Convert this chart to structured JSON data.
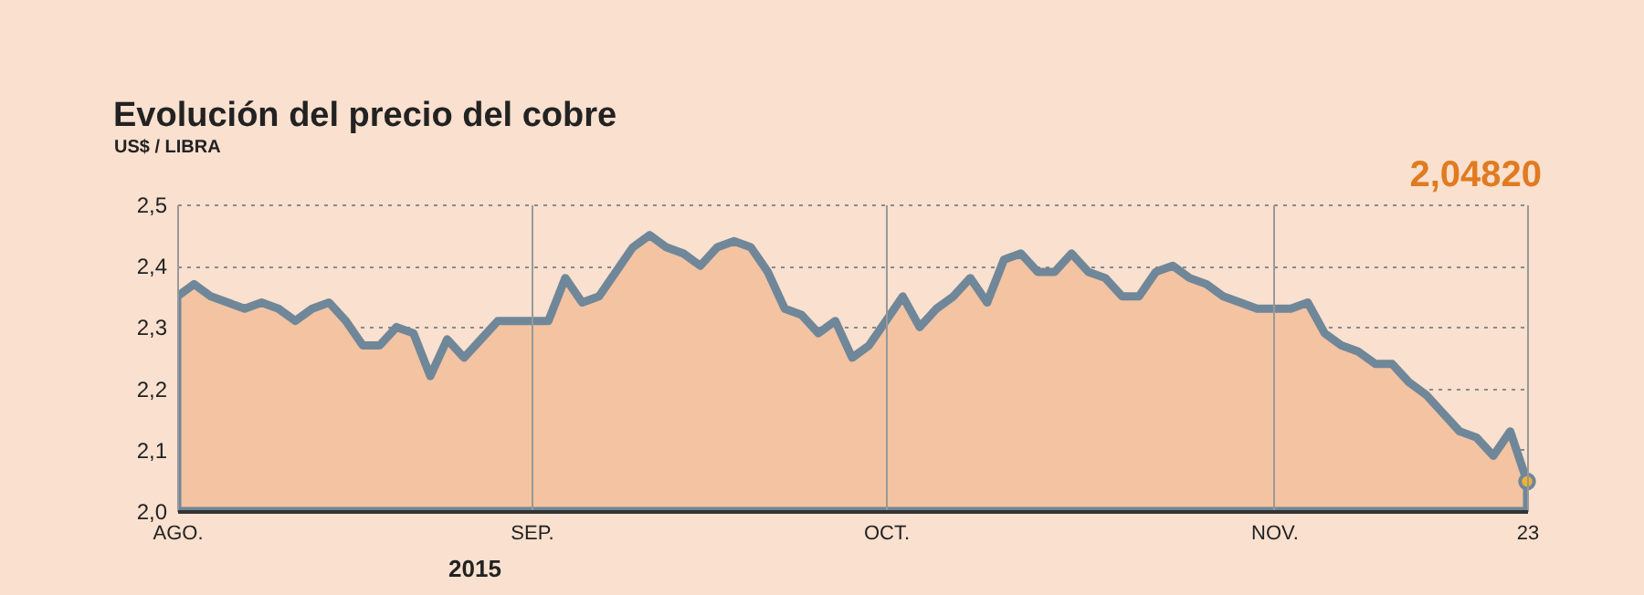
{
  "chart_data": {
    "type": "area",
    "title": "Evolución del precio del cobre",
    "ylabel": "US$ / LIBRA",
    "categories": [
      "AGO.",
      null,
      null,
      null,
      null,
      null,
      null,
      null,
      null,
      null,
      null,
      null,
      null,
      null,
      null,
      null,
      null,
      null,
      null,
      null,
      null,
      "SEP.",
      null,
      null,
      null,
      null,
      null,
      null,
      null,
      null,
      null,
      null,
      null,
      null,
      null,
      null,
      null,
      null,
      null,
      null,
      null,
      null,
      "OCT.",
      null,
      null,
      null,
      null,
      null,
      null,
      null,
      null,
      null,
      null,
      null,
      null,
      null,
      null,
      null,
      null,
      null,
      null,
      null,
      null,
      null,
      null,
      "NOV.",
      null,
      null,
      null,
      null,
      null,
      null,
      null,
      null,
      null,
      null,
      null,
      null,
      null,
      null,
      "23"
    ],
    "series": [
      {
        "color": "#6f8799",
        "values": [
          2.35,
          2.37,
          2.35,
          2.34,
          2.33,
          2.34,
          2.33,
          2.31,
          2.33,
          2.34,
          2.31,
          2.27,
          2.27,
          2.3,
          2.29,
          2.22,
          2.28,
          2.25,
          2.28,
          2.31,
          2.31,
          2.31,
          2.31,
          2.38,
          2.34,
          2.35,
          2.39,
          2.43,
          2.45,
          2.43,
          2.42,
          2.4,
          2.43,
          2.44,
          2.43,
          2.39,
          2.33,
          2.32,
          2.29,
          2.31,
          2.25,
          2.27,
          2.31,
          2.35,
          2.3,
          2.33,
          2.35,
          2.38,
          2.34,
          2.41,
          2.42,
          2.39,
          2.39,
          2.42,
          2.39,
          2.38,
          2.35,
          2.35,
          2.39,
          2.4,
          2.38,
          2.37,
          2.35,
          2.34,
          2.33,
          2.33,
          2.33,
          2.34,
          2.29,
          2.27,
          2.26,
          2.24,
          2.24,
          2.21,
          2.19,
          2.16,
          2.13,
          2.12,
          2.09,
          2.13,
          2.0482
        ]
      }
    ],
    "ylim": [
      2.0,
      2.5
    ],
    "yticks": [
      {
        "value": 2.0,
        "label": "2,0"
      },
      {
        "value": 2.1,
        "label": "2,1"
      },
      {
        "value": 2.2,
        "label": "2,2"
      },
      {
        "value": 2.3,
        "label": "2,3"
      },
      {
        "value": 2.4,
        "label": "2,4"
      },
      {
        "value": 2.5,
        "label": "2,5"
      }
    ],
    "grid": true,
    "annotations": [
      "2015",
      "2,04820"
    ]
  }
}
